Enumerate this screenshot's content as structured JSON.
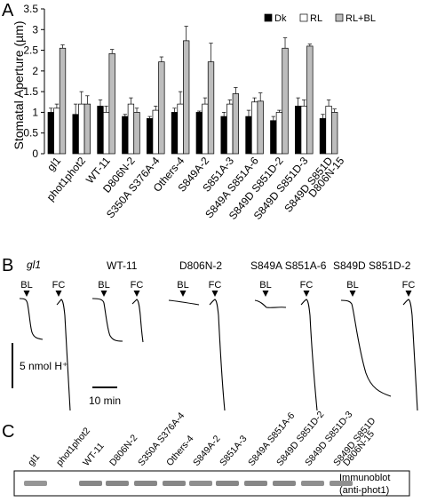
{
  "panels": {
    "a": {
      "letter": "A"
    },
    "b": {
      "letter": "B"
    },
    "c": {
      "letter": "C"
    }
  },
  "chart_data": [
    {
      "type": "bar",
      "ylabel": "Stomatal Aperture (µm)",
      "xlabel": "",
      "ylim": [
        0,
        3.5
      ],
      "yticks": [
        "0",
        "0.5",
        "1",
        "1.5",
        "2",
        "2.5",
        "3",
        "3.5"
      ],
      "legend_position": "top-right",
      "categories": [
        "gl1",
        "phot1phot2",
        "WT-11",
        "D806N-2",
        "S350A S376A-4",
        "Others-4",
        "S849A-2",
        "S851A-3",
        "S849A S851A-6",
        "S849D S851D-2",
        "S849D S851D-3",
        "S849D S851D D806N-15"
      ],
      "series": [
        {
          "name": "Dk",
          "color": "#000000",
          "values": [
            1.0,
            0.95,
            1.15,
            0.9,
            0.85,
            1.0,
            1.0,
            0.9,
            0.9,
            0.8,
            1.15,
            0.85
          ],
          "errors": [
            0.1,
            0.25,
            0.15,
            0.05,
            0.05,
            0.1,
            0.03,
            0.1,
            0.15,
            0.1,
            0.2,
            0.1
          ]
        },
        {
          "name": "RL",
          "color": "#ffffff",
          "values": [
            1.1,
            1.2,
            1.0,
            1.2,
            1.05,
            1.2,
            1.2,
            1.2,
            1.25,
            1.0,
            1.15,
            1.15
          ],
          "errors": [
            0.1,
            0.3,
            0.15,
            0.15,
            0.1,
            0.3,
            0.15,
            0.1,
            0.1,
            0.05,
            0.15,
            0.15
          ]
        },
        {
          "name": "RL+BL",
          "color": "#bdbdbd",
          "values": [
            2.55,
            1.2,
            2.42,
            1.0,
            2.22,
            2.73,
            2.22,
            1.45,
            1.27,
            2.55,
            2.6,
            1.0
          ],
          "errors": [
            0.08,
            0.2,
            0.1,
            0.1,
            0.12,
            0.35,
            0.45,
            0.15,
            0.2,
            0.25,
            0.05,
            0.08
          ]
        }
      ]
    },
    {
      "type": "line",
      "description_labels": {
        "markers": [
          "BL",
          "FC"
        ]
      },
      "traces": [
        "gl1",
        "WT-11",
        "D806N-2",
        "S849A S851A-6",
        "S849D S851D-2"
      ],
      "scale_bar_y": "5 nmol H⁺",
      "scale_bar_x": "10 min"
    },
    {
      "type": "table",
      "lanes": [
        "gl1",
        "phot1phot2",
        "WT-11",
        "D806N-2",
        "S350A S376A-4",
        "Others-4",
        "S849A-2",
        "S851A-3",
        "S849A S851A-6",
        "S849D S851D-2",
        "S849D S851D-3",
        "S849D S851D D806N-15"
      ],
      "band_intensity": [
        0.7,
        0.0,
        0.8,
        0.8,
        0.8,
        0.8,
        0.75,
        0.8,
        0.8,
        0.8,
        0.75,
        0.75
      ],
      "blot_label": [
        "Immunoblot",
        "(anti-phot1)"
      ]
    }
  ]
}
